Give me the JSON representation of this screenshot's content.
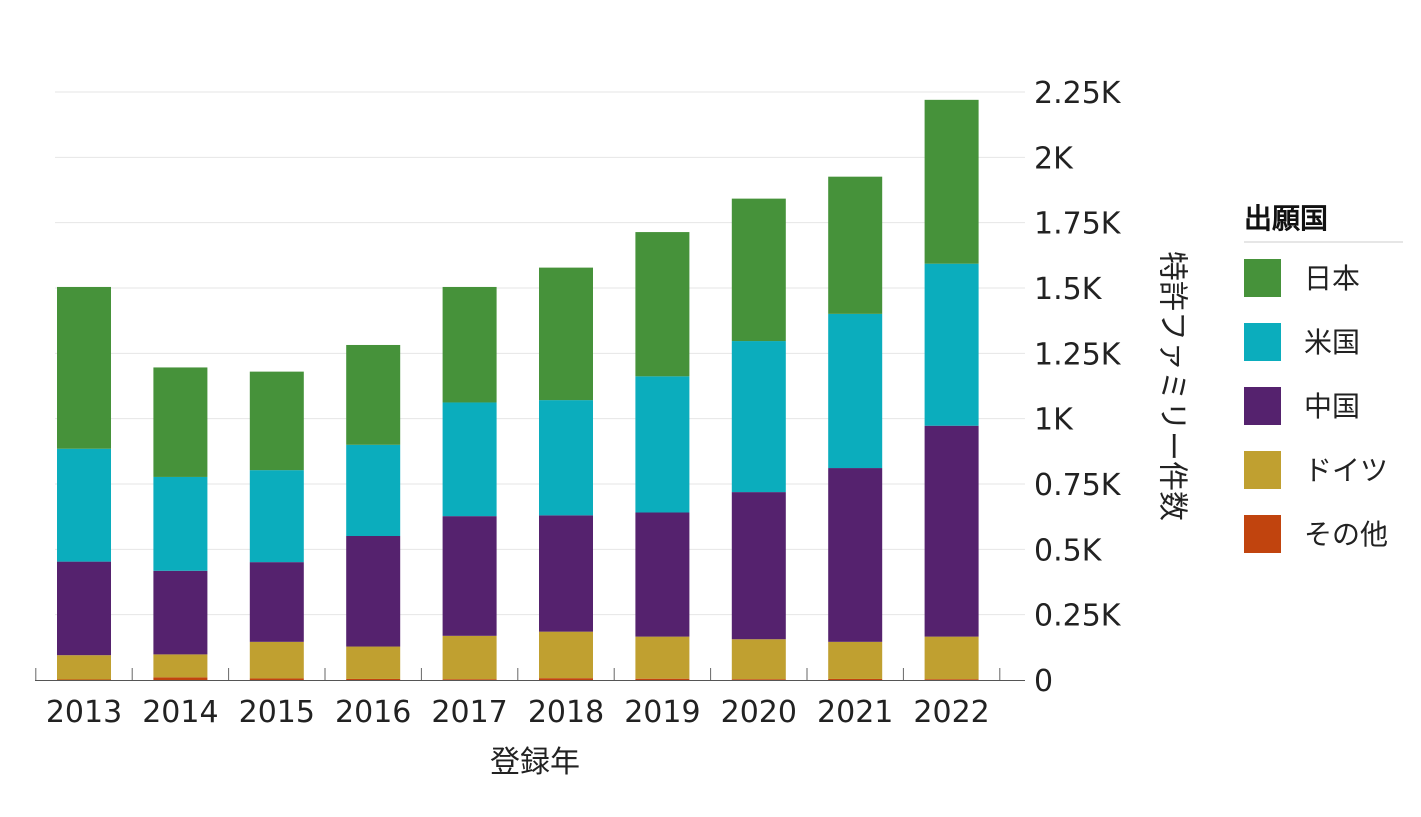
{
  "chart_data": {
    "type": "bar",
    "stacked": true,
    "categories": [
      "2013",
      "2014",
      "2015",
      "2016",
      "2017",
      "2018",
      "2019",
      "2020",
      "2021",
      "2022"
    ],
    "series": [
      {
        "name": "その他",
        "color": "#c1440e",
        "values": [
          2,
          10,
          6,
          4,
          3,
          7,
          5,
          3,
          4,
          3
        ]
      },
      {
        "name": "ドイツ",
        "color": "#c0a030",
        "values": [
          93,
          88,
          140,
          124,
          166,
          178,
          161,
          153,
          142,
          163
        ]
      },
      {
        "name": "中国",
        "color": "#55226e",
        "values": [
          358,
          320,
          305,
          423,
          458,
          445,
          475,
          563,
          665,
          807
        ]
      },
      {
        "name": "米国",
        "color": "#0badbd",
        "values": [
          432,
          359,
          352,
          349,
          435,
          441,
          521,
          578,
          590,
          620
        ]
      },
      {
        "name": "日本",
        "color": "#46923a",
        "values": [
          619,
          419,
          377,
          382,
          442,
          507,
          552,
          545,
          525,
          627
        ]
      }
    ],
    "xlabel": "登録年",
    "ylabel": "特許ファミリー件数",
    "ylim": [
      0,
      2250
    ],
    "yticks": [
      0,
      250,
      500,
      750,
      1000,
      1250,
      1500,
      1750,
      2000,
      2250
    ],
    "ytick_labels": [
      "0",
      "0.25K",
      "0.5K",
      "0.75K",
      "1K",
      "1.25K",
      "1.5K",
      "1.75K",
      "2K",
      "2.25K"
    ],
    "y_axis_side": "right",
    "grid": true,
    "legend": {
      "title": "出願国",
      "position": "right",
      "items": [
        {
          "label": "日本",
          "color": "#46923a"
        },
        {
          "label": "米国",
          "color": "#0badbd"
        },
        {
          "label": "中国",
          "color": "#55226e"
        },
        {
          "label": "ドイツ",
          "color": "#c0a030"
        },
        {
          "label": "その他",
          "color": "#c1440e"
        }
      ]
    }
  }
}
